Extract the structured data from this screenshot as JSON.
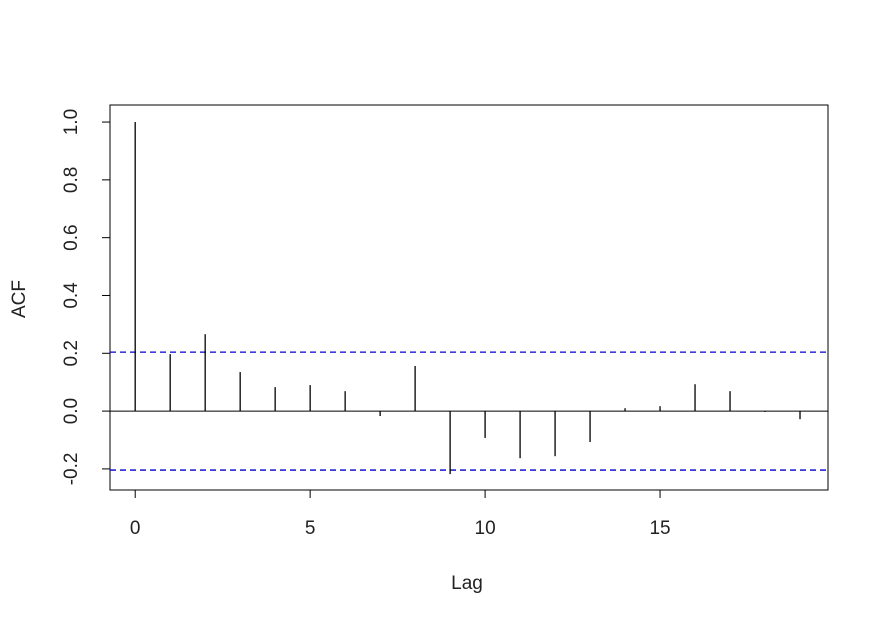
{
  "chart_data": {
    "type": "acf",
    "x_label": "Lag",
    "y_label": "ACF",
    "x": [
      0,
      1,
      2,
      3,
      4,
      5,
      6,
      7,
      8,
      9,
      10,
      11,
      12,
      13,
      14,
      15,
      16,
      17,
      18,
      19
    ],
    "values": [
      1.0,
      0.197,
      0.266,
      0.135,
      0.083,
      0.09,
      0.069,
      -0.017,
      0.156,
      -0.218,
      -0.093,
      -0.163,
      -0.156,
      -0.107,
      0.01,
      0.017,
      0.093,
      0.069,
      -0.003,
      -0.028
    ],
    "color": "#000000",
    "conf_limits": [
      0.204,
      -0.204
    ],
    "conf_color": "#0000cc",
    "xlim": [
      -0.72,
      19.8
    ],
    "xticks": [
      0,
      5,
      10,
      15
    ],
    "ylim": [
      -0.273,
      1.059
    ],
    "yticks": [
      -0.2,
      {
        "value": 0,
        "label": "0.0"
      },
      0.2,
      0.4,
      0.6,
      0.8,
      {
        "value": 1,
        "label": "1.0"
      }
    ]
  }
}
